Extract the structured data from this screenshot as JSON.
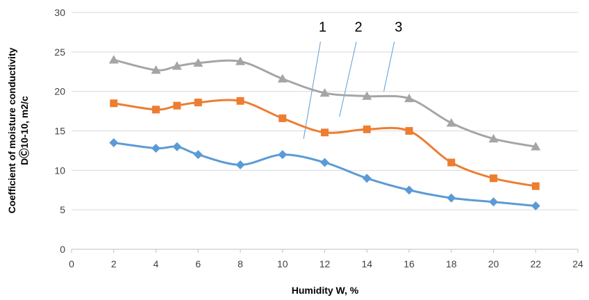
{
  "chart_data": {
    "type": "line",
    "xlabel": "Humidity W, %",
    "ylabel_line1": "Coefficient of moisture conductivity",
    "ylabel_line2": "DⒸ10-10, m2/c",
    "xlim": [
      0,
      24
    ],
    "ylim": [
      0,
      30
    ],
    "xticks": [
      0,
      2,
      4,
      6,
      8,
      10,
      12,
      14,
      16,
      18,
      20,
      22,
      24
    ],
    "yticks": [
      0,
      5,
      10,
      15,
      20,
      25,
      30
    ],
    "grid": "horizontal",
    "series": [
      {
        "label": "1",
        "color": "#5b9bd5",
        "marker": "diamond",
        "x": [
          2,
          4,
          5,
          6,
          8,
          10,
          12,
          14,
          16,
          18,
          20,
          22
        ],
        "y": [
          13.5,
          12.8,
          13.0,
          12.0,
          10.7,
          12.0,
          11.0,
          9.0,
          7.5,
          6.5,
          6.0,
          5.5
        ]
      },
      {
        "label": "2",
        "color": "#ed7d31",
        "marker": "square",
        "x": [
          2,
          4,
          5,
          6,
          8,
          10,
          12,
          14,
          16,
          18,
          20,
          22
        ],
        "y": [
          18.5,
          17.7,
          18.2,
          18.6,
          18.8,
          16.6,
          14.8,
          15.2,
          15.0,
          11.0,
          9.0,
          8.0
        ]
      },
      {
        "label": "3",
        "color": "#a5a5a5",
        "marker": "triangle",
        "x": [
          2,
          4,
          5,
          6,
          8,
          10,
          12,
          14,
          16,
          18,
          20,
          22
        ],
        "y": [
          24.0,
          22.7,
          23.2,
          23.6,
          23.8,
          21.6,
          19.8,
          19.4,
          19.1,
          16.0,
          14.0,
          13.0
        ]
      }
    ],
    "annotations": [
      {
        "text": "1",
        "label_pos": [
          11.9,
          27.6
        ],
        "line_from": [
          11.8,
          26.3
        ],
        "line_to": [
          11.0,
          14.0
        ]
      },
      {
        "text": "2",
        "label_pos": [
          13.6,
          27.6
        ],
        "line_from": [
          13.5,
          26.3
        ],
        "line_to": [
          12.7,
          16.8
        ]
      },
      {
        "text": "3",
        "label_pos": [
          15.5,
          27.6
        ],
        "line_from": [
          15.3,
          26.3
        ],
        "line_to": [
          14.8,
          20.0
        ]
      }
    ]
  }
}
